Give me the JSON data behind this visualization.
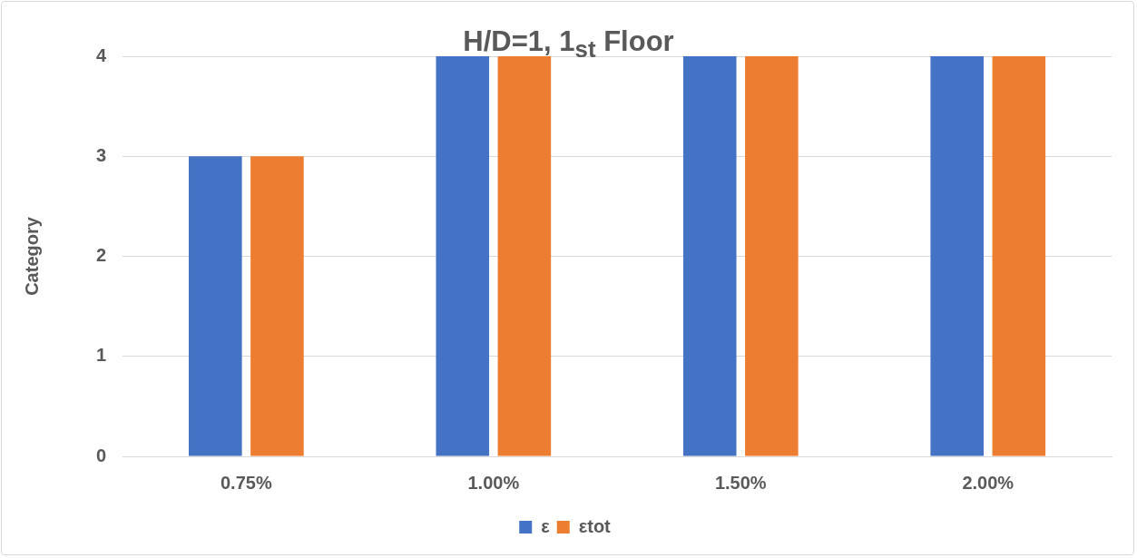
{
  "chart_data": {
    "type": "bar",
    "title": "H/D=1, 1$_{st}$ Floor",
    "ylabel": "Category",
    "categories": [
      "0.75%",
      "1.00%",
      "1.50%",
      "2.00%"
    ],
    "series": [
      {
        "name": "ε",
        "color": "#4472c4",
        "values": [
          3,
          4,
          4,
          4
        ]
      },
      {
        "name": "εtot",
        "color": "#ed7d31",
        "values": [
          3,
          4,
          4,
          4
        ]
      }
    ],
    "ylim": [
      0,
      4
    ],
    "yticks": [
      0,
      1,
      2,
      3,
      4
    ],
    "grid": "y",
    "legend": "bottom"
  }
}
